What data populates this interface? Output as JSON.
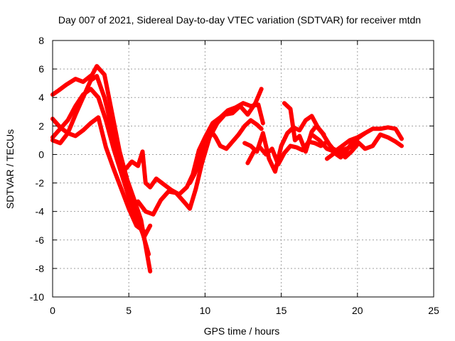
{
  "chart_data": {
    "type": "scatter",
    "title": "Day 007 of 2021, Sidereal Day-to-day VTEC variation (SDTVAR) for receiver mtdn",
    "xlabel": "GPS time / hours",
    "ylabel": "SDTVAR / TECUs",
    "xlim": [
      0,
      25
    ],
    "ylim": [
      -10,
      8
    ],
    "xticks": [
      0,
      5,
      10,
      15,
      20,
      25
    ],
    "yticks": [
      -10,
      -8,
      -6,
      -4,
      -2,
      0,
      2,
      4,
      6,
      8
    ],
    "grid": true,
    "marker": "+",
    "color": "#ff0000",
    "series": [
      {
        "name": "satellite-track-1",
        "x": [
          0.0,
          0.4,
          0.9,
          1.5,
          2.0,
          2.6,
          2.9,
          3.4,
          3.9,
          4.4,
          4.9,
          5.3,
          5.8,
          6.1,
          6.4
        ],
        "y": [
          4.2,
          4.5,
          4.9,
          5.3,
          5.1,
          5.6,
          6.2,
          5.6,
          2.9,
          0.2,
          -1.8,
          -3.0,
          -4.6,
          -6.4,
          -8.2
        ]
      },
      {
        "name": "satellite-track-2",
        "x": [
          0.0,
          0.5,
          1.0,
          1.5,
          2.0,
          2.5,
          2.9,
          3.4,
          3.9,
          4.4,
          4.9,
          5.4,
          5.9,
          6.3
        ],
        "y": [
          1.0,
          0.8,
          1.5,
          2.8,
          4.0,
          5.2,
          5.5,
          4.0,
          1.8,
          -0.7,
          -2.5,
          -4.0,
          -5.5,
          -7.0
        ]
      },
      {
        "name": "satellite-track-3",
        "x": [
          0.0,
          0.5,
          1.0,
          1.5,
          2.0,
          2.5,
          3.0,
          3.5,
          4.0,
          4.5,
          5.0,
          5.5,
          6.0
        ],
        "y": [
          2.5,
          1.9,
          1.5,
          1.3,
          1.7,
          2.2,
          2.6,
          0.5,
          -1.0,
          -2.4,
          -3.8,
          -5.0,
          -5.4
        ]
      },
      {
        "name": "satellite-track-4",
        "x": [
          0.0,
          0.5,
          1.0,
          1.5,
          2.0,
          2.5,
          3.0,
          3.5,
          4.0,
          4.5,
          5.0,
          5.5,
          6.0,
          6.4
        ],
        "y": [
          1.2,
          1.8,
          2.4,
          3.4,
          4.2,
          4.6,
          4.0,
          2.4,
          0.4,
          -1.3,
          -3.0,
          -4.4,
          -5.8,
          -5.0
        ]
      },
      {
        "name": "satellite-track-5",
        "x": [
          4.8,
          5.2,
          5.6,
          5.9,
          6.1,
          6.4,
          6.8,
          7.3,
          7.8,
          8.3,
          8.8,
          9.2,
          9.6,
          10.0,
          10.5,
          11.0,
          11.5,
          12.0,
          12.5,
          13.0,
          13.5,
          13.8
        ],
        "y": [
          -1.0,
          -0.5,
          -0.8,
          0.2,
          -2.0,
          -2.3,
          -1.7,
          -2.1,
          -2.5,
          -2.8,
          -2.3,
          -1.4,
          0.3,
          1.2,
          2.2,
          2.6,
          3.1,
          3.3,
          3.6,
          3.4,
          3.5,
          2.2
        ]
      },
      {
        "name": "satellite-track-6",
        "x": [
          5.6,
          6.1,
          6.6,
          7.1,
          7.6,
          8.1,
          8.6,
          9.0,
          9.4,
          9.8,
          10.3,
          10.8,
          11.3,
          11.8,
          12.3,
          12.8,
          13.3,
          13.7
        ],
        "y": [
          -3.3,
          -4.0,
          -4.2,
          -3.2,
          -2.6,
          -2.7,
          -3.3,
          -3.8,
          -2.4,
          -0.6,
          1.2,
          2.2,
          2.8,
          2.9,
          3.4,
          2.8,
          3.6,
          4.6
        ]
      },
      {
        "name": "satellite-track-7",
        "x": [
          9.0,
          9.3,
          9.6,
          9.9,
          10.3,
          10.7,
          11.0,
          11.4,
          11.8,
          12.2,
          12.6,
          13.0,
          13.4,
          13.7
        ],
        "y": [
          -2.0,
          -1.4,
          -0.6,
          0.8,
          1.8,
          1.2,
          0.6,
          0.4,
          0.9,
          1.4,
          2.0,
          2.4,
          2.1,
          1.8
        ]
      },
      {
        "name": "satellite-track-8",
        "x": [
          12.6,
          13.0,
          13.4,
          13.8,
          14.2,
          14.6,
          15.0,
          15.4,
          15.8,
          16.2,
          16.6,
          17.0,
          17.4,
          17.8
        ],
        "y": [
          0.8,
          0.6,
          0.2,
          1.5,
          -0.3,
          -1.2,
          0.6,
          1.5,
          1.9,
          1.7,
          2.4,
          2.7,
          1.9,
          1.4
        ]
      },
      {
        "name": "satellite-track-9",
        "x": [
          12.8,
          13.2,
          13.6,
          14.0,
          14.4,
          14.8,
          15.2,
          15.6,
          16.0,
          16.4,
          16.8,
          17.2,
          17.6,
          18.0,
          18.4,
          18.8,
          19.2,
          19.6,
          20.0
        ],
        "y": [
          -0.6,
          0.2,
          0.5,
          0.0,
          0.4,
          -0.7,
          0.1,
          0.6,
          0.5,
          0.3,
          0.9,
          0.8,
          0.6,
          0.9,
          0.4,
          0.2,
          -0.2,
          0.2,
          0.7
        ]
      },
      {
        "name": "satellite-track-10",
        "x": [
          15.2,
          15.6,
          15.9,
          16.2,
          16.6,
          17.0,
          17.3,
          17.7,
          18.1,
          18.5,
          18.9,
          19.3,
          19.7,
          20.1,
          20.5
        ],
        "y": [
          3.6,
          3.2,
          1.0,
          1.3,
          0.2,
          1.6,
          2.0,
          1.5,
          0.8,
          0.1,
          -0.2,
          0.3,
          0.9,
          1.2,
          1.5
        ]
      },
      {
        "name": "satellite-track-11",
        "x": [
          17.0,
          17.5,
          18.0,
          18.5,
          19.0,
          19.5,
          20.0,
          20.5,
          21.0,
          21.5,
          22.0,
          22.5,
          22.9
        ],
        "y": [
          1.4,
          1.0,
          0.4,
          0.2,
          0.6,
          1.0,
          1.2,
          1.5,
          1.8,
          1.8,
          1.9,
          1.8,
          1.1
        ]
      },
      {
        "name": "satellite-track-12",
        "x": [
          18.0,
          18.5,
          19.0,
          19.5,
          20.0,
          20.5,
          21.0,
          21.5,
          22.0,
          22.5,
          22.9
        ],
        "y": [
          -0.3,
          0.1,
          0.3,
          0.5,
          0.9,
          0.4,
          0.6,
          1.4,
          1.2,
          0.9,
          0.6
        ]
      }
    ]
  }
}
